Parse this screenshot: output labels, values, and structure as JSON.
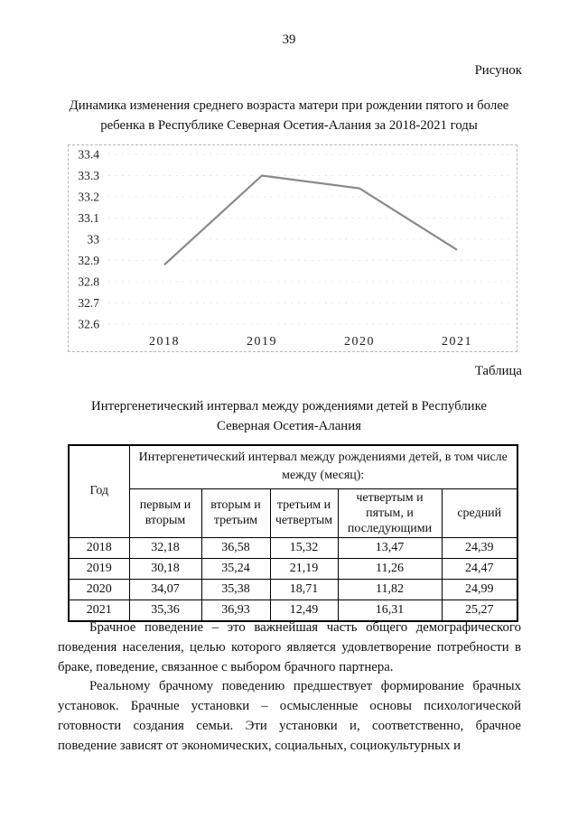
{
  "page": {
    "number": "39"
  },
  "figure": {
    "label": "Рисунок",
    "title": "Динамика изменения среднего возраста матери при рождении пятого и более ребенка в Республике Северная Осетия-Алания за 2018-2021 годы"
  },
  "chart_data": {
    "type": "line",
    "categories": [
      "2018",
      "2019",
      "2020",
      "2021"
    ],
    "values": [
      32.88,
      33.3,
      33.24,
      32.95
    ],
    "title": "",
    "xlabel": "",
    "ylabel": "",
    "ylim": [
      32.6,
      33.4
    ],
    "yticks": [
      "33.4",
      "33.3",
      "33.2",
      "33.1",
      "33",
      "32.9",
      "32.8",
      "32.7",
      "32.6"
    ],
    "grid": "faint dotted horizontal",
    "legend": "none",
    "line_color": "#8a8a8a"
  },
  "table_section": {
    "label": "Таблица",
    "title": "Интергенетический интервал между рождениями детей в Республике Северная Осетия-Алания",
    "table": {
      "year_header": "Год",
      "group_header": "Интергенетический интервал между рождениями детей, в том числе между (месяц):",
      "sub_headers": [
        "первым и вторым",
        "вторым и третьим",
        "третьим и четвертым",
        "четвертым и пятым, и последующими",
        "средний"
      ],
      "rows": [
        {
          "year": "2018",
          "cells": [
            "32,18",
            "36,58",
            "15,32",
            "13,47",
            "24,39"
          ]
        },
        {
          "year": "2019",
          "cells": [
            "30,18",
            "35,24",
            "21,19",
            "11,26",
            "24,47"
          ]
        },
        {
          "year": "2020",
          "cells": [
            "34,07",
            "35,38",
            "18,71",
            "11,82",
            "24,99"
          ]
        },
        {
          "year": "2021",
          "cells": [
            "35,36",
            "36,93",
            "12,49",
            "16,31",
            "25,27"
          ]
        }
      ]
    }
  },
  "body": {
    "paragraphs": [
      "Брачное поведение – это важнейшая часть общего демографического поведения населения, целью которого является удовлетворение потребности в браке, поведение, связанное с выбором брачного партнера.",
      "Реальному брачному поведению предшествует формирование брачных установок. Брачные установки – осмысленные основы психологической готовности создания семьи. Эти установки и, соответственно, брачное поведение зависят от экономических, социальных, социокультурных и"
    ]
  }
}
